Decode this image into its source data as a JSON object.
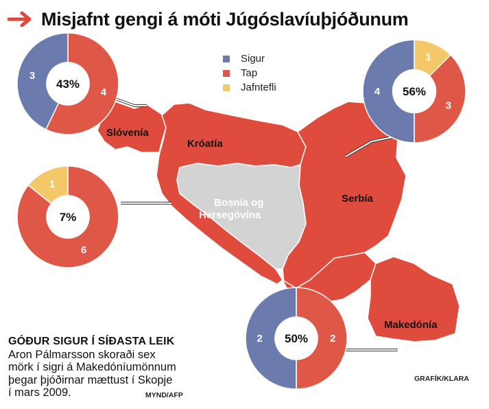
{
  "header": {
    "title": "Misjafnt gengi á móti Júgóslavíuþjóðunum",
    "arrow_icon": "right-arrow-icon",
    "arrow_color": "#d94a3a"
  },
  "colors": {
    "win": "#6b7bad",
    "loss": "#de5747",
    "draw": "#f4c769",
    "map_red": "#df4b3c",
    "map_grey": "#d3d3d3",
    "border": "#ffffff"
  },
  "legend": {
    "items": [
      {
        "label": "Sigur",
        "color": "#6b7bad"
      },
      {
        "label": "Tap",
        "color": "#de5747"
      },
      {
        "label": "Jafntefli",
        "color": "#f4c769"
      }
    ]
  },
  "map": {
    "regions": [
      {
        "name": "Slóvenía",
        "color": "#df4b3c"
      },
      {
        "name": "Króatía",
        "color": "#df4b3c"
      },
      {
        "name": "Bosnía og Hersegóvína",
        "color": "#d3d3d3"
      },
      {
        "name": "Serbía",
        "color": "#df4b3c"
      },
      {
        "name": "Makedónía",
        "color": "#df4b3c"
      }
    ]
  },
  "chart_data": {
    "type": "pie",
    "series_labels": [
      "Sigur",
      "Tap",
      "Jafntefli"
    ],
    "charts": [
      {
        "country": "Slóvenía",
        "win_pct_label": "43%",
        "values": {
          "Sigur": 3,
          "Tap": 4,
          "Jafntefli": 0
        }
      },
      {
        "country": "Króatía",
        "win_pct_label": "7%",
        "values": {
          "Sigur": 0,
          "Tap": 6,
          "Jafntefli": 1
        }
      },
      {
        "country": "Serbía",
        "win_pct_label": "56%",
        "values": {
          "Sigur": 4,
          "Tap": 3,
          "Jafntefli": 1
        }
      },
      {
        "country": "Makedónía",
        "win_pct_label": "50%",
        "values": {
          "Sigur": 2,
          "Tap": 2,
          "Jafntefli": 0
        }
      }
    ]
  },
  "caption": {
    "heading": "GÓÐUR SIGUR Í SÍÐASTA LEIK",
    "lines": [
      "Aron Pálmarsson skoraði sex",
      "mörk í sigri á Makedóníumönnum",
      "þegar þjóðirnar mættust í Skopje",
      "í mars 2009."
    ],
    "photo_credit": "MYND/AFP"
  },
  "graphic_credit": "GRAFÍK/KLARA"
}
